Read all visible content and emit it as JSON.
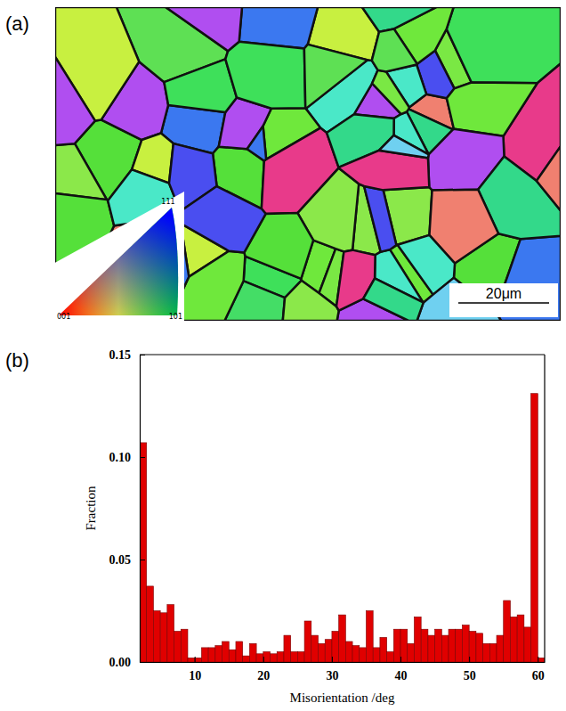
{
  "chart_data": [
    {
      "type": "map",
      "panel": "(a)",
      "legend_labels": [
        "111",
        "001",
        "101"
      ],
      "scale_bar": "20μm"
    },
    {
      "type": "histogram",
      "panel": "(b)",
      "x_label": "Misorientation /deg",
      "y_label": "Fraction",
      "color": "#e00000",
      "bins": [
        2,
        3,
        4,
        5,
        6,
        7,
        8,
        9,
        10,
        11,
        12,
        13,
        14,
        15,
        16,
        17,
        18,
        19,
        20,
        21,
        22,
        23,
        24,
        25,
        26,
        27,
        28,
        29,
        30,
        31,
        32,
        33,
        34,
        35,
        36,
        37,
        38,
        39,
        40,
        41,
        42,
        43,
        44,
        45,
        46,
        47,
        48,
        49,
        50,
        51,
        52,
        53,
        54,
        55,
        56,
        57,
        58,
        59,
        60,
        61
      ],
      "values": [
        0.107,
        0.037,
        0.025,
        0.024,
        0.028,
        0.015,
        0.016,
        0.002,
        0.002,
        0.007,
        0.007,
        0.008,
        0.01,
        0.006,
        0.01,
        0.003,
        0.009,
        0.004,
        0.005,
        0.004,
        0.005,
        0.013,
        0.005,
        0.005,
        0.02,
        0.013,
        0.009,
        0.011,
        0.015,
        0.023,
        0.01,
        0.008,
        0.007,
        0.025,
        0.007,
        0.012,
        0.005,
        0.016,
        0.016,
        0.009,
        0.022,
        0.016,
        0.013,
        0.016,
        0.013,
        0.016,
        0.016,
        0.018,
        0.015,
        0.014,
        0.009,
        0.009,
        0.013,
        0.03,
        0.022,
        0.023,
        0.017,
        0.131,
        0.002
      ],
      "xlim": [
        2,
        61
      ],
      "xticks": [
        10,
        20,
        30,
        40,
        50,
        60
      ],
      "ylim": [
        0,
        0.15
      ],
      "yticks": [
        {
          "value": 0,
          "label": "0.00"
        },
        {
          "value": 0.05,
          "label": "0.05"
        },
        {
          "value": 0.1,
          "label": "0.10"
        },
        {
          "value": 0.15,
          "label": "0.15"
        }
      ]
    }
  ]
}
